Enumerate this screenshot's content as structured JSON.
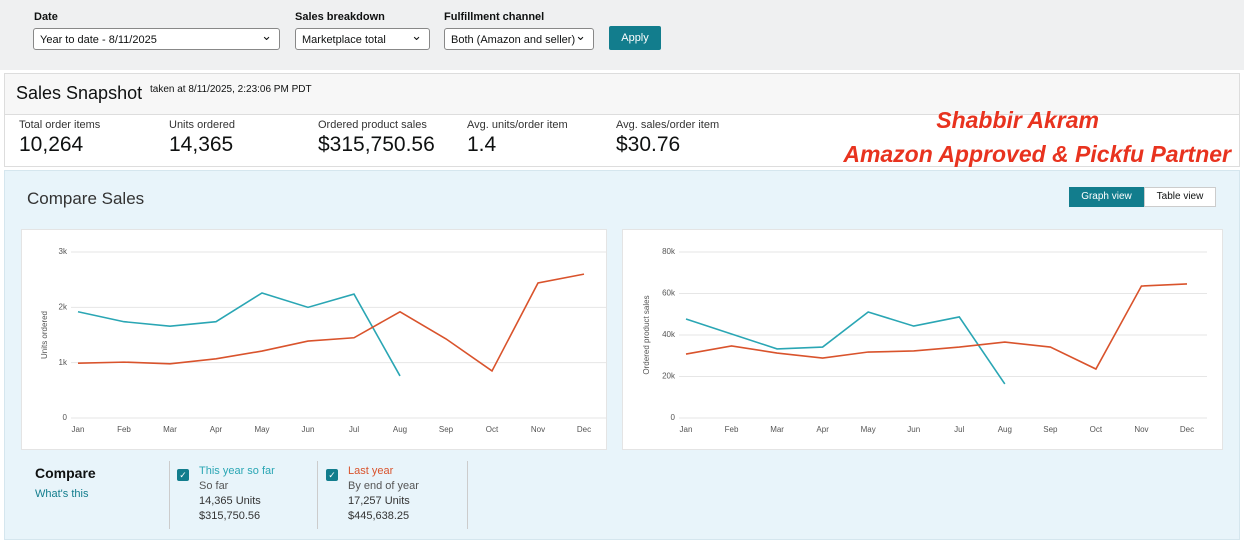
{
  "filters": [
    {
      "label": "Date",
      "value": "Year to date - 8/11/2025"
    },
    {
      "label": "Sales breakdown",
      "value": "Marketplace total"
    },
    {
      "label": "Fulfillment channel",
      "value": "Both (Amazon and seller)"
    }
  ],
  "apply_button": "Apply",
  "snapshot": {
    "title": "Sales Snapshot",
    "taken_at": "taken at 8/11/2025, 2:23:06 PM PDT",
    "metrics": [
      {
        "label": "Total order items",
        "value": "10,264"
      },
      {
        "label": "Units ordered",
        "value": "14,365"
      },
      {
        "label": "Ordered product sales",
        "value": "$315,750.56"
      },
      {
        "label": "Avg. units/order item",
        "value": "1.4"
      },
      {
        "label": "Avg. sales/order item",
        "value": "$30.76"
      }
    ]
  },
  "watermark": [
    "Shabbir Akram",
    "Amazon Approved & Pickfu Partner"
  ],
  "compare_sales": {
    "title": "Compare Sales",
    "views": [
      "Graph view",
      "Table view"
    ]
  },
  "chart_data": [
    {
      "type": "line",
      "y_label": "Units ordered",
      "categories": [
        "Jan",
        "Feb",
        "Mar",
        "Apr",
        "May",
        "Jun",
        "Jul",
        "Aug",
        "Sep",
        "Oct",
        "Nov",
        "Dec"
      ],
      "series": [
        {
          "name": "This year so far",
          "color": "#2aa6b4",
          "values": [
            1920,
            1740,
            1660,
            1740,
            2260,
            2000,
            2240,
            760,
            null,
            null,
            null,
            null
          ]
        },
        {
          "name": "Last year",
          "color": "#d9532c",
          "values": [
            990,
            1010,
            980,
            1070,
            1210,
            1390,
            1450,
            1920,
            1430,
            850,
            2440,
            2600
          ]
        }
      ],
      "ylim": [
        0,
        3000
      ],
      "yticks": [
        0,
        {
          "value": 1000,
          "label": "1k"
        },
        {
          "value": 2000,
          "label": "2k"
        },
        {
          "value": 3000,
          "label": "3k"
        }
      ],
      "grid": true
    },
    {
      "type": "line",
      "y_label": "Ordered product sales",
      "categories": [
        "Jan",
        "Feb",
        "Mar",
        "Apr",
        "May",
        "Jun",
        "Jul",
        "Aug",
        "Sep",
        "Oct",
        "Nov",
        "Dec"
      ],
      "series": [
        {
          "name": "This year so far",
          "color": "#2aa6b4",
          "values": [
            47700,
            40500,
            33300,
            34200,
            51100,
            44300,
            48700,
            16400,
            null,
            null,
            null,
            null
          ]
        },
        {
          "name": "Last year",
          "color": "#d9532c",
          "values": [
            30800,
            34700,
            31300,
            28900,
            31800,
            32300,
            34200,
            36600,
            34200,
            23600,
            63600,
            64600
          ]
        }
      ],
      "ylim": [
        0,
        80000
      ],
      "yticks": [
        0,
        {
          "value": 20000,
          "label": "20k"
        },
        {
          "value": 40000,
          "label": "40k"
        },
        {
          "value": 60000,
          "label": "60k"
        },
        {
          "value": 80000,
          "label": "80k"
        }
      ],
      "grid": true
    }
  ],
  "legend": {
    "title": "Compare",
    "link": "What's this",
    "items": [
      {
        "label": "This year so far",
        "period": "So far",
        "units": "14,365 Units",
        "sales": "$315,750.56"
      },
      {
        "label": "Last year",
        "period": "By end of year",
        "units": "17,257 Units",
        "sales": "$445,638.25"
      }
    ]
  }
}
